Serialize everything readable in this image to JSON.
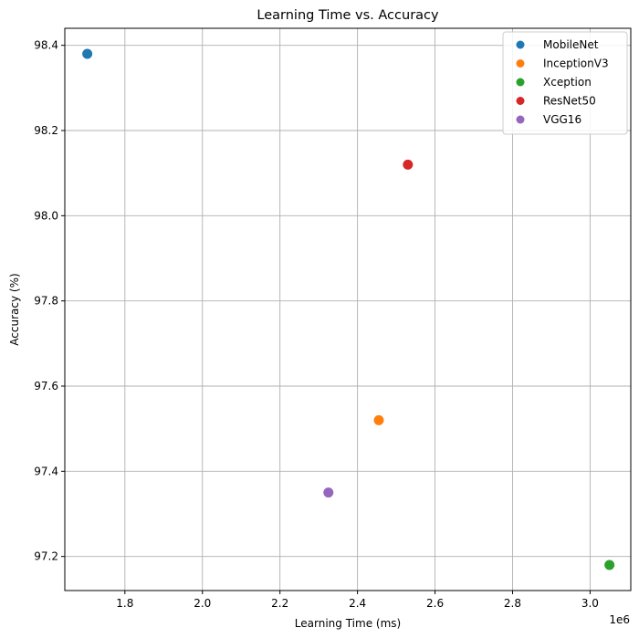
{
  "chart_data": {
    "type": "scatter",
    "title": "Learning Time vs. Accuracy",
    "xlabel": "Learning Time (ms)",
    "ylabel": "Accuracy (%)",
    "x_offset_label": "1e6",
    "xlim": [
      1645000,
      3105000
    ],
    "ylim": [
      97.12,
      98.44
    ],
    "xticks": [
      1800000,
      2000000,
      2200000,
      2400000,
      2600000,
      2800000,
      3000000
    ],
    "xtick_labels": [
      "1.8",
      "2.0",
      "2.2",
      "2.4",
      "2.6",
      "2.8",
      "3.0"
    ],
    "yticks": [
      97.2,
      97.4,
      97.6,
      97.8,
      98.0,
      98.2,
      98.4
    ],
    "ytick_labels": [
      "97.2",
      "97.4",
      "97.6",
      "97.8",
      "98.0",
      "98.2",
      "98.4"
    ],
    "grid": true,
    "legend_position": "top-right",
    "series": [
      {
        "name": "MobileNet",
        "color": "#1f77b4",
        "x": [
          1703000
        ],
        "y": [
          98.38
        ]
      },
      {
        "name": "InceptionV3",
        "color": "#ff7f0e",
        "x": [
          2455000
        ],
        "y": [
          97.52
        ]
      },
      {
        "name": "Xception",
        "color": "#2ca02c",
        "x": [
          3050000
        ],
        "y": [
          97.18
        ]
      },
      {
        "name": "ResNet50",
        "color": "#d62728",
        "x": [
          2530000
        ],
        "y": [
          98.12
        ]
      },
      {
        "name": "VGG16",
        "color": "#9467bd",
        "x": [
          2325000
        ],
        "y": [
          97.35
        ]
      }
    ]
  }
}
